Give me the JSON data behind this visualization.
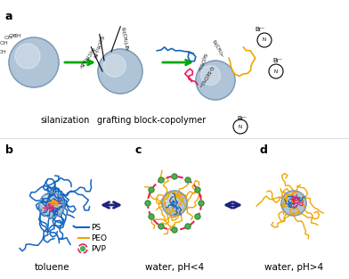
{
  "figure_width": 3.92,
  "figure_height": 3.13,
  "dpi": 100,
  "bg_color": "#ffffff",
  "panel_a_label": "a",
  "panel_b_label": "b",
  "panel_c_label": "c",
  "panel_d_label": "d",
  "label_fontsize": 9,
  "text_fontsize": 7,
  "legend_fontsize": 6.5,
  "arrow_color": "#00aa00",
  "double_arrow_color": "#1a237e",
  "toluene_text": "toluene",
  "water_ph4_text": "water, pH<4",
  "water_ph4plus_text": "water, pH>4",
  "silanization_text": "silanization",
  "grafting_text": "grafting block-copolymer",
  "ps_color": "#1565c0",
  "peo_color": "#f0a500",
  "pvp_color": "#e91e63",
  "pvp_dot_color": "#4caf50",
  "nanoparticle_color_light": "#b0c4d8",
  "nanoparticle_color_dark": "#7a9ab5",
  "legend_ps": "PS",
  "legend_peo": "PEO",
  "legend_pvp": "PVP"
}
